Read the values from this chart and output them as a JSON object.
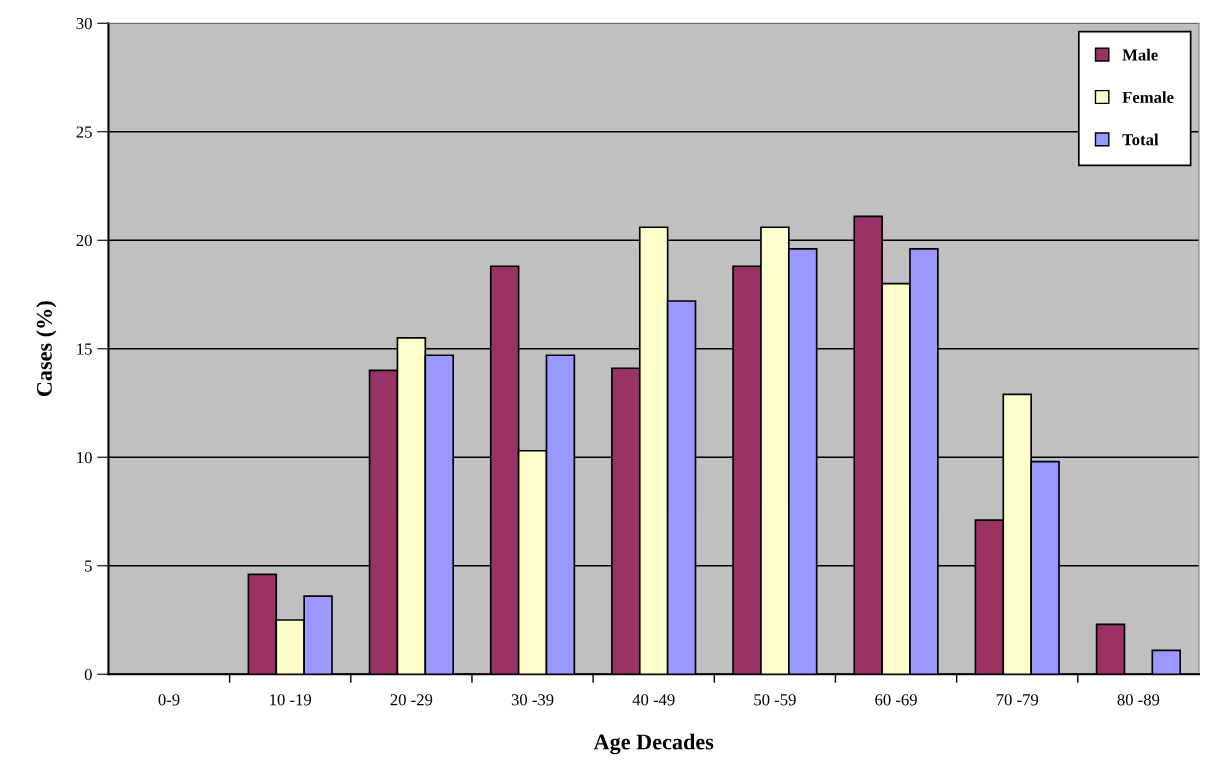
{
  "chart_data": {
    "type": "bar",
    "xlabel": "Age Decades",
    "ylabel": "Cases (%)",
    "categories": [
      "0-9",
      "10 -19",
      "20 -29",
      "30 -39",
      "40 -49",
      "50 -59",
      "60 -69",
      "70 -79",
      "80 -89"
    ],
    "series": [
      {
        "name": "Male",
        "color": "#993366",
        "values": [
          0,
          4.6,
          14.0,
          18.8,
          14.1,
          18.8,
          21.1,
          7.1,
          2.3
        ]
      },
      {
        "name": "Female",
        "color": "#ffffcc",
        "values": [
          0,
          2.5,
          15.5,
          10.3,
          20.6,
          20.6,
          18.0,
          12.9,
          0
        ]
      },
      {
        "name": "Total",
        "color": "#9999ff",
        "values": [
          0,
          3.6,
          14.7,
          14.7,
          17.2,
          19.6,
          19.6,
          9.8,
          1.1
        ]
      }
    ],
    "ylim": [
      0,
      30
    ],
    "yticks": [
      0,
      5,
      10,
      15,
      20,
      25,
      30
    ],
    "grid": "y",
    "legend": "top right"
  }
}
